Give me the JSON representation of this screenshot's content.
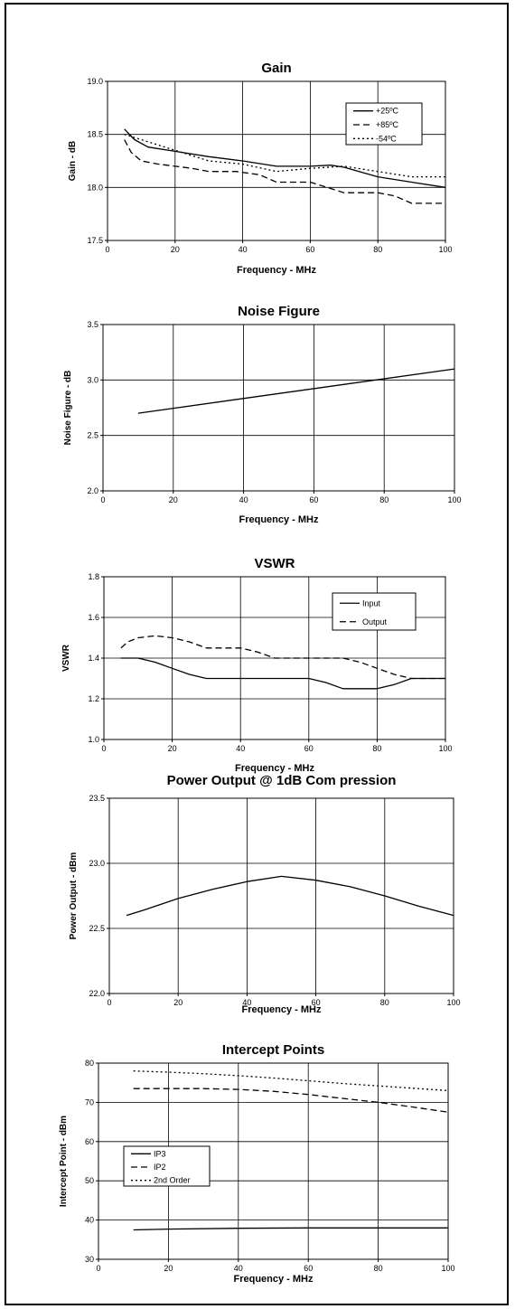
{
  "chart_data": [
    {
      "type": "line",
      "title": "Gain",
      "xlabel": "Frequency - MHz",
      "ylabel": "Gain - dB",
      "xlim": [
        0,
        100
      ],
      "ylim": [
        17.5,
        19.0
      ],
      "xticks": [
        0,
        20,
        40,
        60,
        80,
        100
      ],
      "xtick_labels": [
        "0",
        "20",
        "40",
        "60",
        "80",
        "100"
      ],
      "yticks": [
        17.5,
        18.0,
        18.5,
        19.0
      ],
      "ytick_labels": [
        "17.5",
        "18.0",
        "18.5",
        "19.0"
      ],
      "grid": true,
      "legend": "top-right",
      "series": [
        {
          "name": "+25ºC",
          "dash": "solid",
          "x": [
            5,
            8,
            12,
            20,
            30,
            40,
            50,
            60,
            66,
            70,
            80,
            90,
            100
          ],
          "y": [
            18.55,
            18.45,
            18.38,
            18.34,
            18.29,
            18.25,
            18.2,
            18.2,
            18.21,
            18.19,
            18.1,
            18.05,
            18.0
          ]
        },
        {
          "name": "+85ºC",
          "dash": "dashed",
          "x": [
            5,
            7,
            10,
            15,
            20,
            25,
            30,
            38,
            45,
            50,
            60,
            65,
            70,
            80,
            85,
            90,
            100
          ],
          "y": [
            18.45,
            18.33,
            18.25,
            18.22,
            18.2,
            18.18,
            18.15,
            18.15,
            18.12,
            18.05,
            18.05,
            18.0,
            17.95,
            17.95,
            17.92,
            17.85,
            17.85
          ]
        },
        {
          "name": "-54ºC",
          "dash": "dotted",
          "x": [
            5,
            10,
            20,
            30,
            40,
            50,
            60,
            70,
            80,
            90,
            100
          ],
          "y": [
            18.5,
            18.45,
            18.35,
            18.25,
            18.22,
            18.15,
            18.18,
            18.2,
            18.15,
            18.1,
            18.1
          ]
        }
      ]
    },
    {
      "type": "line",
      "title": "Noise Figure",
      "xlabel": "Frequency - MHz",
      "ylabel": "Noise Figure - dB",
      "xlim": [
        0,
        100
      ],
      "ylim": [
        2.0,
        3.5
      ],
      "xticks": [
        0,
        20,
        40,
        60,
        80,
        100
      ],
      "xtick_labels": [
        "0",
        "20",
        "40",
        "60",
        "80",
        "100"
      ],
      "yticks": [
        2.0,
        2.5,
        3.0,
        3.5
      ],
      "ytick_labels": [
        "2.0",
        "2.5",
        "3.0",
        "3.5"
      ],
      "grid": true,
      "series": [
        {
          "dash": "solid",
          "x": [
            10,
            100
          ],
          "y": [
            2.7,
            3.1
          ]
        }
      ]
    },
    {
      "type": "line",
      "title": "VSWR",
      "xlabel": "Frequency - MHz",
      "ylabel": "VSWR",
      "xlim": [
        0,
        100
      ],
      "ylim": [
        1.0,
        1.8
      ],
      "xticks": [
        0,
        20,
        40,
        60,
        80,
        100
      ],
      "xtick_labels": [
        "0",
        "20",
        "40",
        "60",
        "80",
        "100"
      ],
      "yticks": [
        1.0,
        1.2,
        1.4,
        1.6,
        1.8
      ],
      "ytick_labels": [
        "1.0",
        "1.2",
        "1.4",
        "1.6",
        "1.8"
      ],
      "grid": true,
      "legend": "top-right",
      "series": [
        {
          "name": "Input",
          "dash": "solid",
          "x": [
            5,
            10,
            15,
            20,
            25,
            30,
            40,
            50,
            55,
            60,
            65,
            70,
            75,
            80,
            85,
            90,
            100
          ],
          "y": [
            1.4,
            1.4,
            1.38,
            1.35,
            1.32,
            1.3,
            1.3,
            1.3,
            1.3,
            1.3,
            1.28,
            1.25,
            1.25,
            1.25,
            1.27,
            1.3,
            1.3
          ]
        },
        {
          "name": "Output",
          "dash": "dashed",
          "x": [
            5,
            7,
            10,
            15,
            20,
            25,
            30,
            35,
            40,
            45,
            50,
            55,
            60,
            65,
            70,
            75,
            80,
            85,
            90,
            95,
            100
          ],
          "y": [
            1.45,
            1.48,
            1.5,
            1.51,
            1.5,
            1.48,
            1.45,
            1.45,
            1.45,
            1.43,
            1.4,
            1.4,
            1.4,
            1.4,
            1.4,
            1.38,
            1.35,
            1.32,
            1.3,
            1.3,
            1.3
          ]
        }
      ]
    },
    {
      "type": "line",
      "title": "Power Output @ 1dB Com pression",
      "xlabel": "Frequency - MHz",
      "ylabel": "Power Output - dBm",
      "xlim": [
        0,
        100
      ],
      "ylim": [
        22.0,
        23.5
      ],
      "xticks": [
        0,
        20,
        40,
        60,
        80,
        100
      ],
      "xtick_labels": [
        "0",
        "20",
        "40",
        "60",
        "80",
        "100"
      ],
      "yticks": [
        22.0,
        22.5,
        23.0,
        23.5
      ],
      "ytick_labels": [
        "22.0",
        "22.5",
        "23.0",
        "23.5"
      ],
      "grid": true,
      "series": [
        {
          "dash": "solid",
          "x": [
            5,
            10,
            20,
            30,
            40,
            50,
            60,
            70,
            80,
            90,
            100
          ],
          "y": [
            22.6,
            22.64,
            22.73,
            22.8,
            22.86,
            22.9,
            22.87,
            22.82,
            22.75,
            22.67,
            22.6
          ]
        }
      ]
    },
    {
      "type": "line",
      "title": "Intercept Points",
      "xlabel": "Frequency - MHz",
      "ylabel": "Intercept Point - dBm",
      "xlim": [
        0,
        100
      ],
      "ylim": [
        30,
        80
      ],
      "xticks": [
        0,
        20,
        40,
        60,
        80,
        100
      ],
      "xtick_labels": [
        "0",
        "20",
        "40",
        "60",
        "80",
        "100"
      ],
      "yticks": [
        30,
        40,
        50,
        60,
        70,
        80
      ],
      "ytick_labels": [
        "30",
        "40",
        "50",
        "60",
        "70",
        "80"
      ],
      "grid": true,
      "legend": "middle-left",
      "series": [
        {
          "name": "IP3",
          "dash": "solid",
          "x": [
            10,
            20,
            40,
            60,
            80,
            100
          ],
          "y": [
            37.5,
            37.7,
            37.9,
            38.0,
            38.0,
            38.0
          ]
        },
        {
          "name": "IP2",
          "dash": "dashed",
          "x": [
            10,
            20,
            30,
            40,
            50,
            60,
            70,
            80,
            90,
            100
          ],
          "y": [
            73.5,
            73.5,
            73.5,
            73.3,
            72.8,
            72.0,
            71.0,
            70.0,
            68.8,
            67.5
          ]
        },
        {
          "name": "2nd Order",
          "dash": "dotted",
          "x": [
            10,
            20,
            30,
            40,
            50,
            60,
            70,
            80,
            90,
            100
          ],
          "y": [
            78.0,
            77.7,
            77.3,
            76.8,
            76.2,
            75.5,
            74.8,
            74.2,
            73.6,
            73.0
          ]
        }
      ]
    }
  ]
}
